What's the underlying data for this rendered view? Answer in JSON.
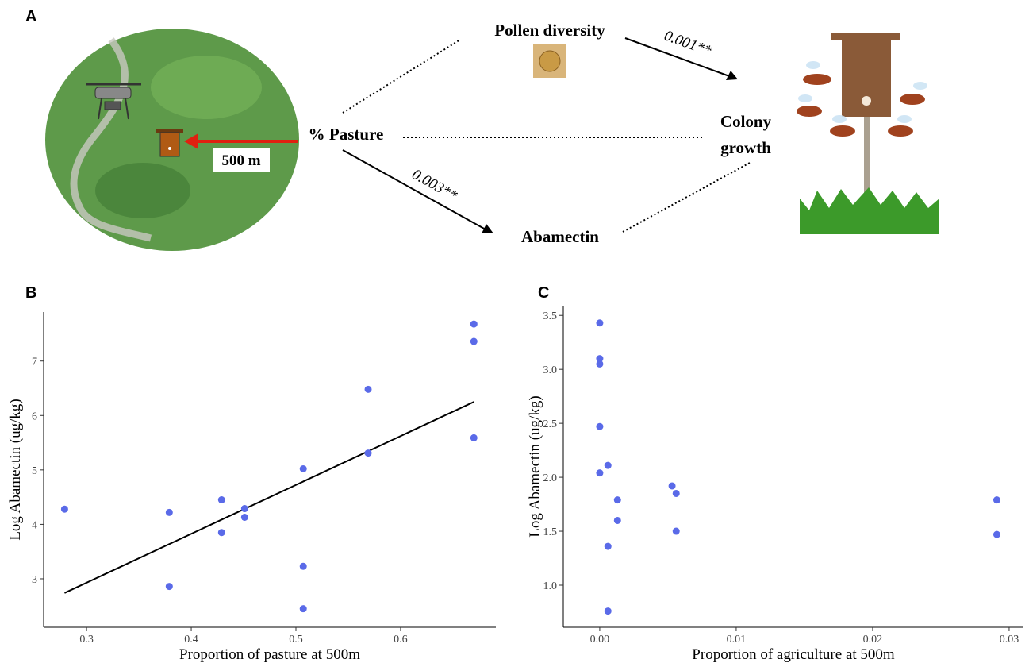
{
  "panel_labels": [
    "A",
    "B",
    "C"
  ],
  "diagram": {
    "distance_label": "500 m",
    "nodes": {
      "pasture": "% Pasture",
      "pollen": "Pollen diversity",
      "abamectin": "Abamectin",
      "colony": [
        "Colony",
        "growth"
      ]
    },
    "edges": {
      "pollen_colony": "0.001**",
      "pasture_abamectin": "0.003**"
    }
  },
  "chart_data": [
    {
      "type": "scatter",
      "xlabel": "Proportion of pasture at 500m",
      "ylabel": "Log Abamectin (ug/kg)",
      "x": [
        0.279,
        0.379,
        0.379,
        0.429,
        0.429,
        0.451,
        0.451,
        0.507,
        0.507,
        0.507,
        0.569,
        0.569,
        0.67,
        0.67,
        0.67
      ],
      "values": [
        4.28,
        4.22,
        2.86,
        4.45,
        3.85,
        4.29,
        4.13,
        5.02,
        3.23,
        2.45,
        6.48,
        5.31,
        7.68,
        7.36,
        5.59
      ],
      "color": "#5a6ae8",
      "fit_line": {
        "x": [
          0.279,
          0.67
        ],
        "values": [
          2.74,
          6.25
        ],
        "color": "#000000"
      },
      "xlim": [
        0.259,
        0.691
      ],
      "ylim": [
        2.11,
        7.9
      ],
      "xticks": [
        0.3,
        0.4,
        0.5,
        0.6
      ],
      "yticks": [
        3,
        4,
        5,
        6,
        7
      ]
    },
    {
      "type": "scatter",
      "xlabel": "Proportion of agriculture at 500m",
      "ylabel": "Log Abamectin (ug/kg)",
      "x": [
        0,
        0,
        0,
        0,
        0,
        0.0006,
        0.0013,
        0.0013,
        0.0006,
        0.0006,
        0.0053,
        0.0056,
        0.0056,
        0.0291,
        0.0291
      ],
      "values": [
        3.43,
        3.1,
        3.05,
        2.47,
        2.04,
        2.11,
        1.79,
        1.6,
        1.36,
        0.76,
        1.92,
        1.85,
        1.5,
        1.79,
        1.47
      ],
      "color": "#5a6ae8",
      "xlim": [
        -0.00267,
        0.03105
      ],
      "ylim": [
        0.61,
        3.59
      ],
      "xticks": [
        {
          "value": 0,
          "label": "0.00"
        },
        0.01,
        0.02,
        0.03
      ],
      "yticks": [
        {
          "value": 1,
          "label": "1.0"
        },
        1.5,
        {
          "value": 2,
          "label": "2.0"
        },
        2.5,
        {
          "value": 3,
          "label": "3.0"
        },
        3.5
      ]
    }
  ]
}
